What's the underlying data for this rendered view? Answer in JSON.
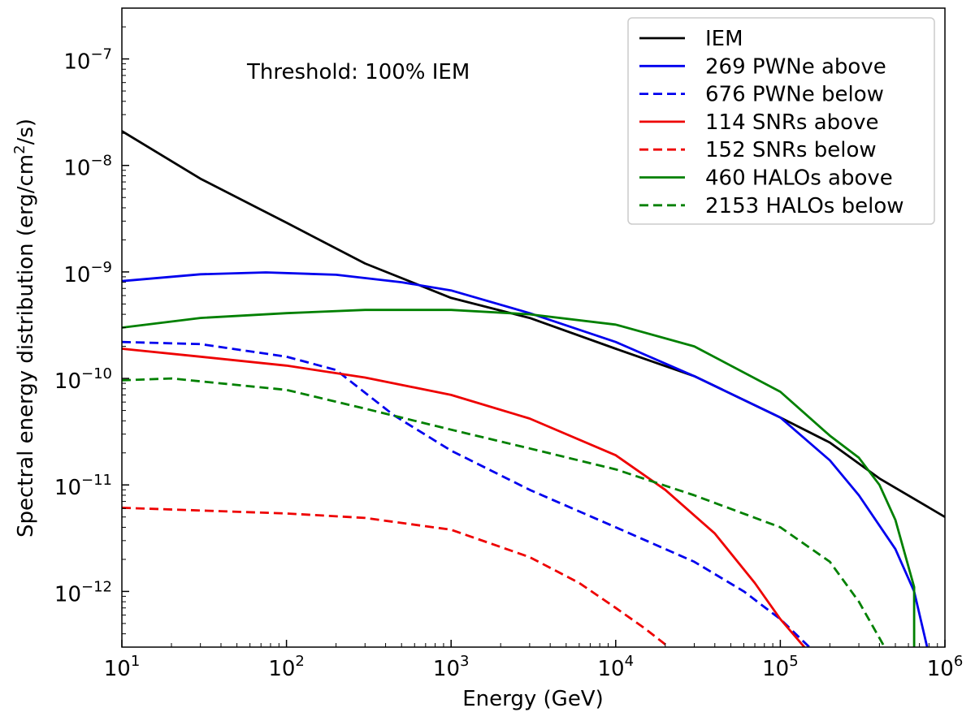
{
  "chart_data": {
    "type": "line",
    "xscale": "log",
    "yscale": "log",
    "title": "",
    "xlabel": "Energy (GeV)",
    "ylabel_main": "Spectral energy distribution (erg/cm",
    "ylabel_sup": "2",
    "ylabel_tail": "/s)",
    "annotation": "Threshold: 100% IEM",
    "xlim": [
      10,
      1000000
    ],
    "ylim": [
      3e-13,
      3e-07
    ],
    "x_ticks": [
      {
        "value": 10,
        "base": "10",
        "exp": "1"
      },
      {
        "value": 100,
        "base": "10",
        "exp": "2"
      },
      {
        "value": 1000,
        "base": "10",
        "exp": "3"
      },
      {
        "value": 10000,
        "base": "10",
        "exp": "4"
      },
      {
        "value": 100000,
        "base": "10",
        "exp": "5"
      },
      {
        "value": 1000000,
        "base": "10",
        "exp": "6"
      }
    ],
    "y_ticks": [
      {
        "value": 1e-07,
        "base": "10",
        "exp": "−7"
      },
      {
        "value": 1e-08,
        "base": "10",
        "exp": "−8"
      },
      {
        "value": 1e-09,
        "base": "10",
        "exp": "−9"
      },
      {
        "value": 1e-10,
        "base": "10",
        "exp": "−10"
      },
      {
        "value": 1e-11,
        "base": "10",
        "exp": "−11"
      },
      {
        "value": 1e-12,
        "base": "10",
        "exp": "−12"
      }
    ],
    "legend_position": "top-right",
    "series": [
      {
        "name": "IEM",
        "color": "#000000",
        "dash": "solid",
        "points": [
          [
            10,
            2.1e-08
          ],
          [
            30,
            7.5e-09
          ],
          [
            100,
            2.9e-09
          ],
          [
            300,
            1.2e-09
          ],
          [
            1000,
            5.7e-10
          ],
          [
            3000,
            3.7e-10
          ],
          [
            10000,
            1.9e-10
          ],
          [
            30000,
            1.05e-10
          ],
          [
            100000,
            4.3e-11
          ],
          [
            200000,
            2.5e-11
          ],
          [
            400000,
            1.15e-11
          ],
          [
            1000000,
            5e-12
          ]
        ]
      },
      {
        "name": "269 PWNe above",
        "color": "#0000ee",
        "dash": "solid",
        "points": [
          [
            10,
            8.2e-10
          ],
          [
            30,
            9.5e-10
          ],
          [
            75,
            9.9e-10
          ],
          [
            200,
            9.4e-10
          ],
          [
            500,
            8e-10
          ],
          [
            1000,
            6.7e-10
          ],
          [
            3000,
            4.1e-10
          ],
          [
            10000,
            2.2e-10
          ],
          [
            30000,
            1.05e-10
          ],
          [
            100000,
            4.3e-11
          ],
          [
            200000,
            1.7e-11
          ],
          [
            300000,
            8e-12
          ],
          [
            500000,
            2.5e-12
          ],
          [
            650000,
            1e-12
          ],
          [
            780000,
            3e-13
          ]
        ]
      },
      {
        "name": "676 PWNe below",
        "color": "#0000ee",
        "dash": "dashed",
        "points": [
          [
            10,
            2.2e-10
          ],
          [
            30,
            2.1e-10
          ],
          [
            100,
            1.6e-10
          ],
          [
            200,
            1.2e-10
          ],
          [
            450,
            4.5e-11
          ],
          [
            1000,
            2.1e-11
          ],
          [
            3000,
            9e-12
          ],
          [
            10000,
            4e-12
          ],
          [
            30000,
            1.9e-12
          ],
          [
            60000,
            1e-12
          ],
          [
            100000,
            5.5e-13
          ],
          [
            150000,
            3e-13
          ]
        ]
      },
      {
        "name": "114 SNRs above",
        "color": "#ee0000",
        "dash": "solid",
        "points": [
          [
            10,
            1.9e-10
          ],
          [
            30,
            1.6e-10
          ],
          [
            100,
            1.32e-10
          ],
          [
            300,
            1.02e-10
          ],
          [
            1000,
            7e-11
          ],
          [
            3000,
            4.2e-11
          ],
          [
            10000,
            1.9e-11
          ],
          [
            20000,
            9e-12
          ],
          [
            40000,
            3.5e-12
          ],
          [
            70000,
            1.2e-12
          ],
          [
            100000,
            5.5e-13
          ],
          [
            140000,
            3e-13
          ]
        ]
      },
      {
        "name": "152 SNRs below",
        "color": "#ee0000",
        "dash": "dashed",
        "points": [
          [
            10,
            6.1e-12
          ],
          [
            100,
            5.4e-12
          ],
          [
            300,
            4.9e-12
          ],
          [
            1000,
            3.8e-12
          ],
          [
            3000,
            2.1e-12
          ],
          [
            6000,
            1.2e-12
          ],
          [
            10000,
            7e-13
          ],
          [
            15000,
            4.5e-13
          ],
          [
            21000,
            3e-13
          ]
        ]
      },
      {
        "name": "460 HALOs above",
        "color": "#008000",
        "dash": "solid",
        "points": [
          [
            10,
            3e-10
          ],
          [
            30,
            3.7e-10
          ],
          [
            100,
            4.1e-10
          ],
          [
            300,
            4.4e-10
          ],
          [
            1000,
            4.4e-10
          ],
          [
            3000,
            4e-10
          ],
          [
            10000,
            3.2e-10
          ],
          [
            30000,
            2e-10
          ],
          [
            100000,
            7.5e-11
          ],
          [
            200000,
            2.9e-11
          ],
          [
            300000,
            1.8e-11
          ],
          [
            400000,
            1e-11
          ],
          [
            500000,
            4.7e-12
          ],
          [
            650000,
            1.1e-12
          ],
          [
            650000,
            3e-13
          ]
        ]
      },
      {
        "name": "2153 HALOs below",
        "color": "#008000",
        "dash": "dashed",
        "points": [
          [
            10,
            9.6e-11
          ],
          [
            20,
            1e-10
          ],
          [
            100,
            7.8e-11
          ],
          [
            300,
            5.2e-11
          ],
          [
            1000,
            3.3e-11
          ],
          [
            3000,
            2.2e-11
          ],
          [
            10000,
            1.4e-11
          ],
          [
            30000,
            8e-12
          ],
          [
            100000,
            4e-12
          ],
          [
            200000,
            1.9e-12
          ],
          [
            300000,
            8e-13
          ],
          [
            430000,
            3e-13
          ]
        ]
      }
    ]
  }
}
